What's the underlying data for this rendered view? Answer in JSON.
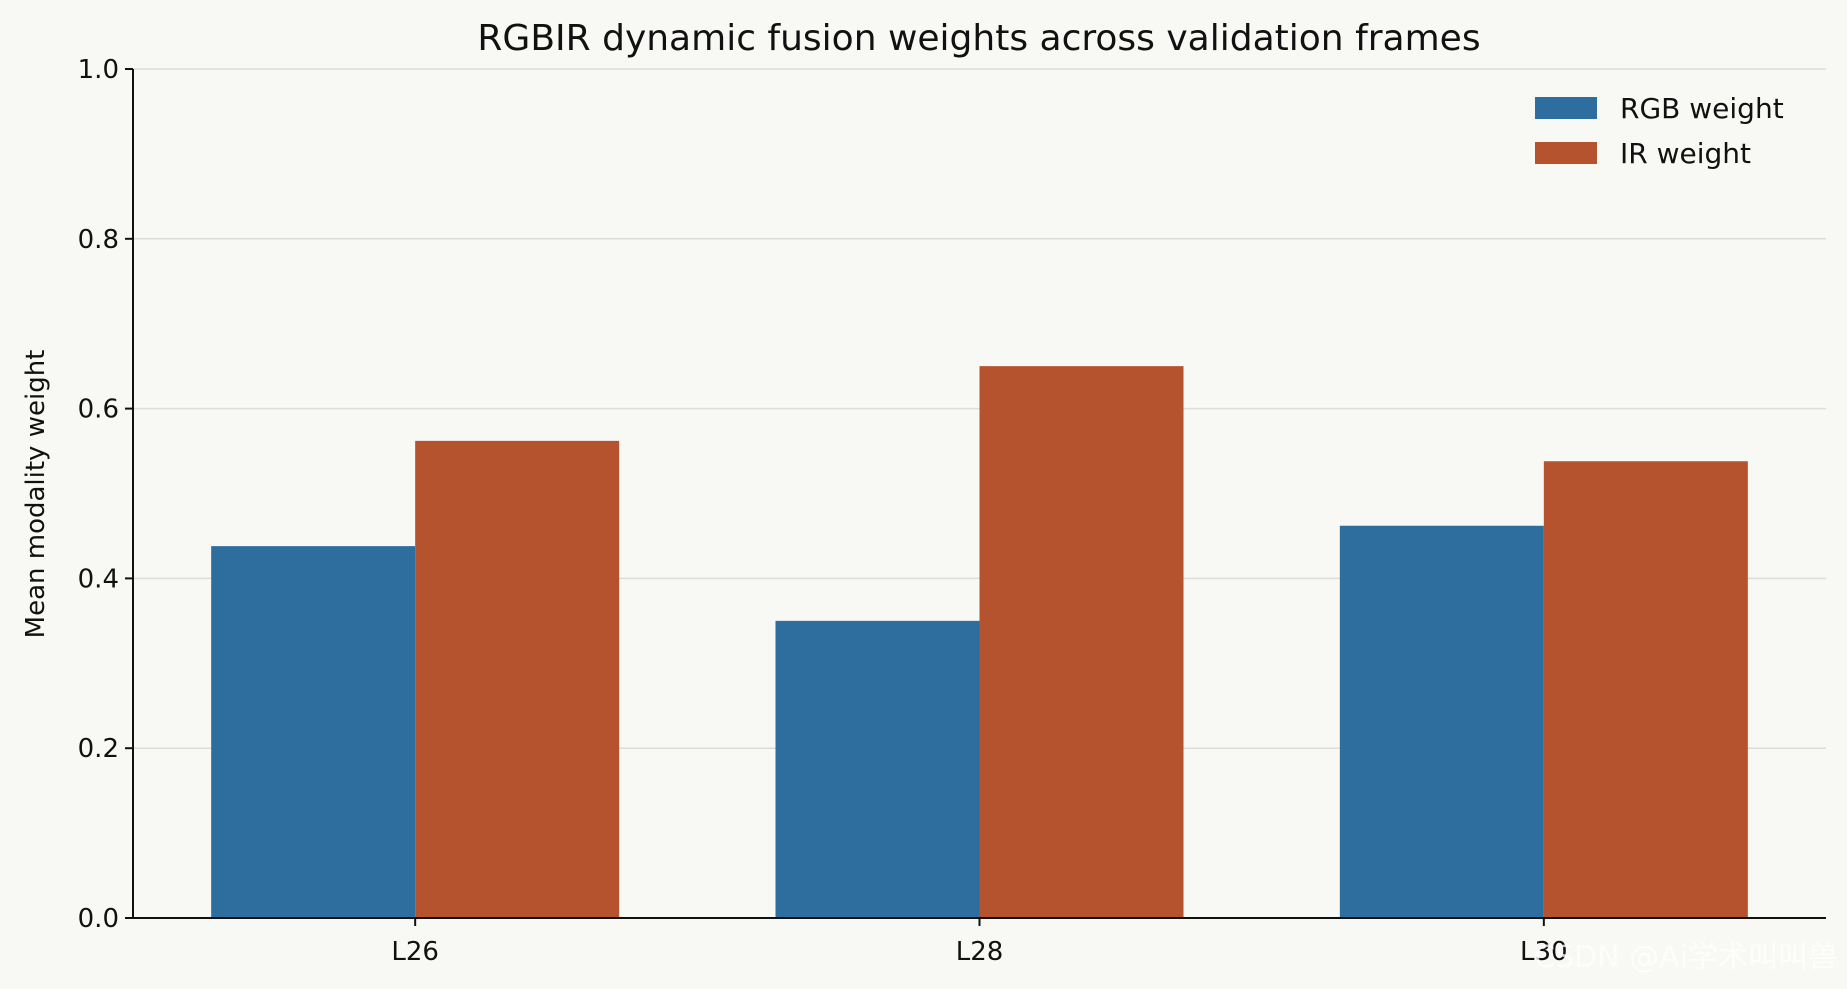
{
  "chart_data": {
    "type": "bar",
    "title": "RGBIR dynamic fusion weights across validation frames",
    "xlabel": "",
    "ylabel": "Mean modality weight",
    "categories": [
      "L26",
      "L28",
      "L30"
    ],
    "series": [
      {
        "name": "RGB weight",
        "values": [
          0.438,
          0.35,
          0.462
        ],
        "color": "#2e6e9e"
      },
      {
        "name": "IR weight",
        "values": [
          0.562,
          0.65,
          0.538
        ],
        "color": "#b5532f"
      }
    ],
    "ylim": [
      0,
      1.0
    ],
    "yticks": [
      {
        "value": 0.0,
        "label": "0.0"
      },
      {
        "value": 0.2,
        "label": "0.2"
      },
      {
        "value": 0.4,
        "label": "0.4"
      },
      {
        "value": 0.6,
        "label": "0.6"
      },
      {
        "value": 0.8,
        "label": "0.8"
      },
      {
        "value": 1.0,
        "label": "1.0"
      }
    ],
    "grid": true,
    "grid_axis": "y",
    "legend_position": "top-right"
  },
  "watermark": "CSDN @Ai学术叫叫兽",
  "colors": {
    "background": "#f8f8f4",
    "grid": "#dcdcd8",
    "axis": "#111111"
  }
}
